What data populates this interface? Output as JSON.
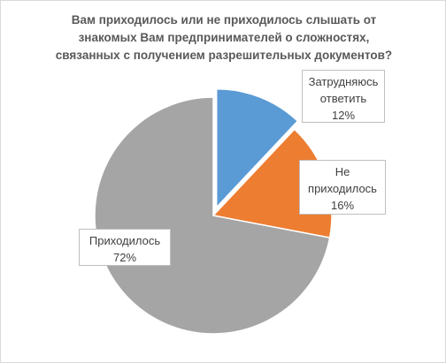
{
  "chart_data": {
    "type": "pie",
    "title_lines": [
      "Вам приходилось или не приходилось слышать от",
      "знакомых Вам предпринимателей о сложностях,",
      "связанных с получением разрешительных документов?"
    ],
    "slices": [
      {
        "label_lines": [
          "Затрудняюсь",
          "ответить"
        ],
        "value": 12,
        "value_label": "12%",
        "color": "#5b9bd5",
        "exploded": true
      },
      {
        "label_lines": [
          "Не",
          "приходилось"
        ],
        "value": 16,
        "value_label": "16%",
        "color": "#ed7d31",
        "exploded": false
      },
      {
        "label_lines": [
          "Приходилось"
        ],
        "value": 72,
        "value_label": "72%",
        "color": "#a5a5a5",
        "exploded": false
      }
    ],
    "start_angle_deg": 0,
    "direction": "clockwise",
    "legend": "none"
  }
}
